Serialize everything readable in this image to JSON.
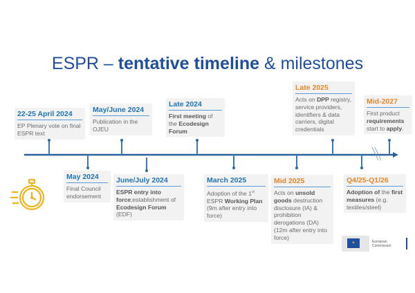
{
  "title": {
    "regular1": "ESPR – ",
    "bold": "tentative timeline",
    "regular2": " & milestones"
  },
  "colors": {
    "blue": "#1f73b7",
    "orange": "#e8862a",
    "line": "#2c5f9e",
    "title": "#1f4f9c"
  },
  "milestones": [
    {
      "heading": "22-25 April 2024",
      "color": "blue",
      "body": [
        {
          "t": "EP Plenary vote on final ESPR text"
        }
      ]
    },
    {
      "heading": "May/June 2024",
      "color": "blue",
      "body": [
        {
          "t": "Publication in the OJEU"
        }
      ]
    },
    {
      "heading": "Late 2024",
      "color": "blue",
      "body": [
        {
          "t": "First meeting",
          "b": true
        },
        {
          "t": " of the "
        },
        {
          "t": "Ecodesign Forum",
          "b": true
        }
      ]
    },
    {
      "heading": "May 2024",
      "color": "blue",
      "body": [
        {
          "t": "Final Council endorsement"
        }
      ]
    },
    {
      "heading": "June/July 2024",
      "color": "blue",
      "body": [
        {
          "t": "ESPR entry into force",
          "b": true
        },
        {
          "t": ";establishment of "
        },
        {
          "t": "Ecodesign Forum",
          "b": true
        },
        {
          "t": " (EDF)"
        }
      ]
    },
    {
      "heading": "March 2025",
      "color": "blue",
      "body": [
        {
          "t": "Adoption of the 1"
        },
        {
          "t": "st",
          "sup": true
        },
        {
          "t": " ESPR "
        },
        {
          "t": "Working Plan",
          "b": true
        },
        {
          "t": " (9m after entry into force)"
        }
      ]
    },
    {
      "heading": "Mid 2025",
      "color": "orange",
      "body": [
        {
          "t": "Acts on "
        },
        {
          "t": "unsold goods",
          "b": true
        },
        {
          "t": " destruction disclosure (IA) & prohibition derogations (DA) (12m after entry into force)"
        }
      ]
    },
    {
      "heading": "Late 2025",
      "color": "orange",
      "body": [
        {
          "t": "Acts on "
        },
        {
          "t": "DPP",
          "b": true
        },
        {
          "t": " registry, service providers, identifiers & data carriers, digital credentials"
        }
      ]
    },
    {
      "heading": "Mid-2027",
      "color": "orange",
      "body": [
        {
          "t": "First product "
        },
        {
          "t": "requirements",
          "b": true
        },
        {
          "t": " start to "
        },
        {
          "t": "apply",
          "b": true
        },
        {
          "t": "."
        }
      ]
    },
    {
      "heading": "Q4/25-Q1/26",
      "color": "orange",
      "body": [
        {
          "t": "Adoption of",
          "b": true
        },
        {
          "t": " the "
        },
        {
          "t": "first measures",
          "b": true
        },
        {
          "t": " (e.g. textiles/steel)"
        }
      ]
    }
  ],
  "icons": {
    "stopwatch": "stopwatch-icon",
    "logo": "european-commission-logo"
  },
  "logo": {
    "line1": "European",
    "line2": "Commission"
  }
}
